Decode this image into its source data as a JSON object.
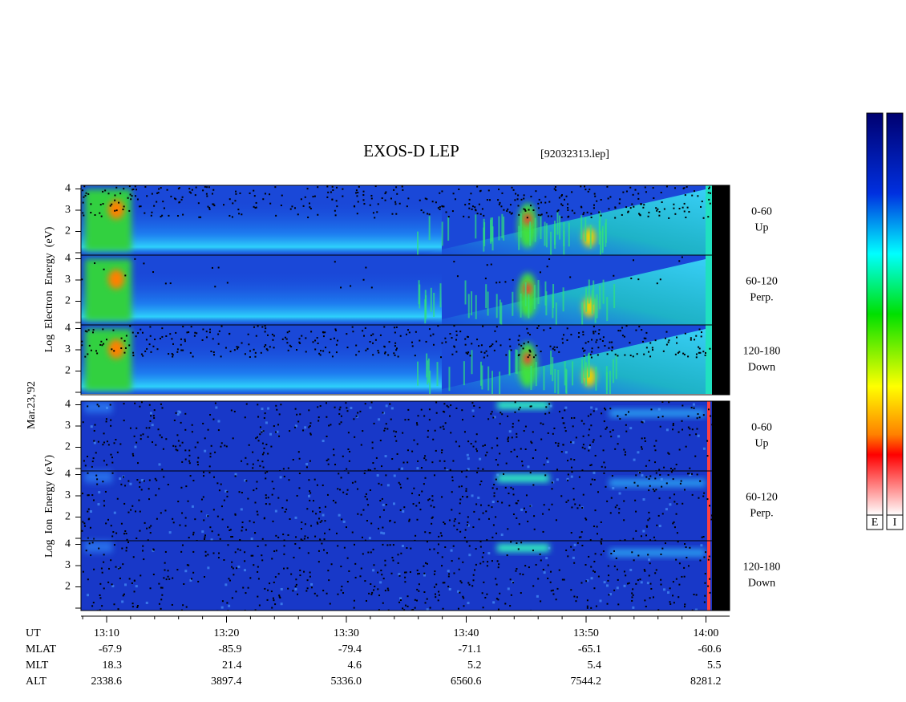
{
  "title": "EXOS-D LEP",
  "file": "[92032313.lep]",
  "date_label": "Mar.23,'92",
  "electron": {
    "y_label": "Log  Electron  Energy  (eV)",
    "yticks": [
      2,
      3,
      4
    ],
    "channels": [
      {
        "angle": "0-60",
        "dir": "Up"
      },
      {
        "angle": "60-120",
        "dir": "Perp."
      },
      {
        "angle": "120-180",
        "dir": "Down"
      }
    ]
  },
  "ion": {
    "y_label": "Log  Ion  Energy  (eV)",
    "yticks": [
      2,
      3,
      4
    ],
    "channels": [
      {
        "angle": "0-60",
        "dir": "Up"
      },
      {
        "angle": "60-120",
        "dir": "Perp."
      },
      {
        "angle": "120-180",
        "dir": "Down"
      }
    ]
  },
  "ephemeris": [
    {
      "name": "UT",
      "values": [
        "13:10",
        "13:20",
        "13:30",
        "13:40",
        "13:50",
        "14:00"
      ]
    },
    {
      "name": "MLAT",
      "values": [
        "-67.9",
        "-85.9",
        "-79.4",
        "-71.1",
        "-65.1",
        "-60.6"
      ]
    },
    {
      "name": "MLT",
      "values": [
        "18.3",
        "21.4",
        "4.6",
        "5.2",
        "5.4",
        "5.5"
      ]
    },
    {
      "name": "ALT",
      "values": [
        "2338.6",
        "3897.4",
        "5336.0",
        "6560.6",
        "7544.2",
        "8281.2"
      ]
    }
  ],
  "colorbar_labels": [
    "E",
    "I"
  ]
}
